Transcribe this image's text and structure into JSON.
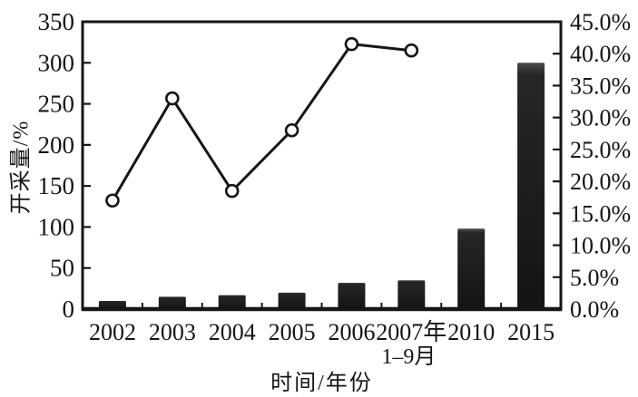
{
  "figure": {
    "background": "#ffffff",
    "ink_color": "#161616",
    "bar_color": "#1f1f1f",
    "bar_highlight": "#4a4a4a",
    "marker_fill": "#ffffff"
  },
  "chart_data": {
    "type": "bar",
    "combo": "bar+line",
    "title": "",
    "xlabel": "时间/年份",
    "ylabel": "开采量/%",
    "categories": [
      "2002",
      "2003",
      "2004",
      "2005",
      "2006",
      "2007年",
      "2010",
      "2015"
    ],
    "category_line2": [
      "",
      "",
      "",
      "",
      "",
      "1–9月",
      "",
      ""
    ],
    "series": [
      {
        "type": "bar",
        "axis": "left",
        "values": [
          10,
          15,
          17,
          20,
          32,
          35,
          98,
          300
        ]
      },
      {
        "type": "line",
        "axis": "right",
        "marker": "open-circle",
        "values": [
          17.0,
          33.0,
          18.5,
          28.0,
          41.5,
          40.5,
          null,
          null
        ]
      }
    ],
    "left_axis": {
      "min": 0,
      "max": 350,
      "step": 50,
      "labels": [
        "0",
        "50",
        "100",
        "150",
        "200",
        "250",
        "300",
        "350"
      ]
    },
    "right_axis": {
      "min": 0,
      "max": 45,
      "step": 5,
      "labels": [
        "0.0%",
        "5.0%",
        "10.0%",
        "15.0%",
        "20.0%",
        "25.0%",
        "30.0%",
        "35.0%",
        "40.0%",
        "45.0%"
      ]
    },
    "grid": false,
    "legend": "none",
    "frame": true
  }
}
